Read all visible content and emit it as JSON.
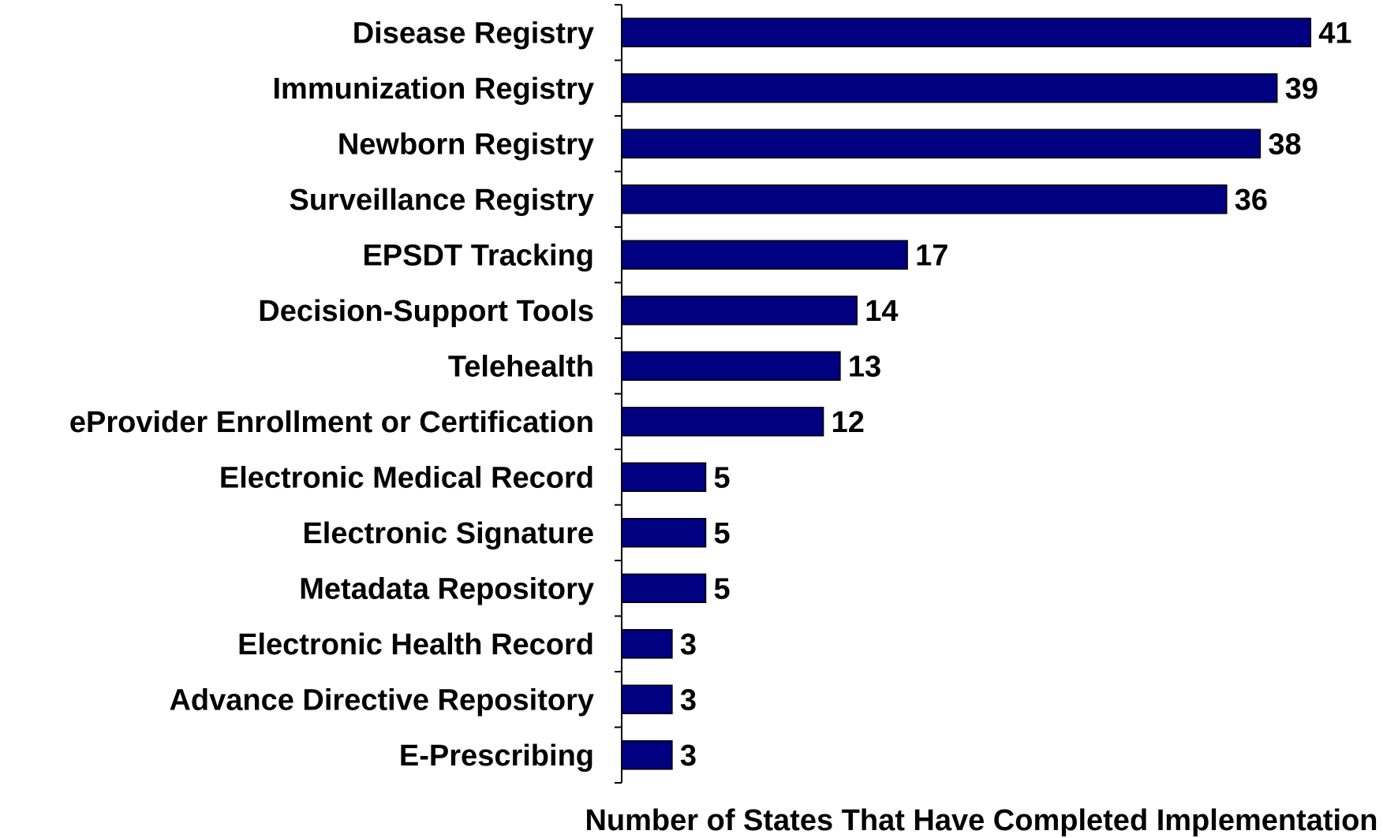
{
  "chart_data": {
    "type": "bar",
    "orientation": "horizontal",
    "categories": [
      "Disease Registry",
      "Immunization Registry",
      "Newborn Registry",
      "Surveillance Registry",
      "EPSDT Tracking",
      "Decision-Support Tools",
      "Telehealth",
      "eProvider Enrollment or Certification",
      "Electronic Medical Record",
      "Electronic Signature",
      "Metadata Repository",
      "Electronic Health Record",
      "Advance Directive Repository",
      "E-Prescribing"
    ],
    "values": [
      41,
      39,
      38,
      36,
      17,
      14,
      13,
      12,
      5,
      5,
      5,
      3,
      3,
      3
    ],
    "data_labels": [
      "41",
      "39",
      "38",
      "36",
      "17",
      "14",
      "13",
      "12",
      "5",
      "5",
      "5",
      "3",
      "3",
      "3"
    ],
    "title": "",
    "xlabel": "Number of States That Have Completed Implementation",
    "ylabel": "",
    "xlim": [
      0,
      41
    ],
    "grid": false,
    "legend": "none",
    "colors": {
      "bar_fill": "#000080",
      "bar_stroke": "#000000",
      "axis": "#000000",
      "text": "#000000",
      "background": "#ffffff"
    }
  }
}
